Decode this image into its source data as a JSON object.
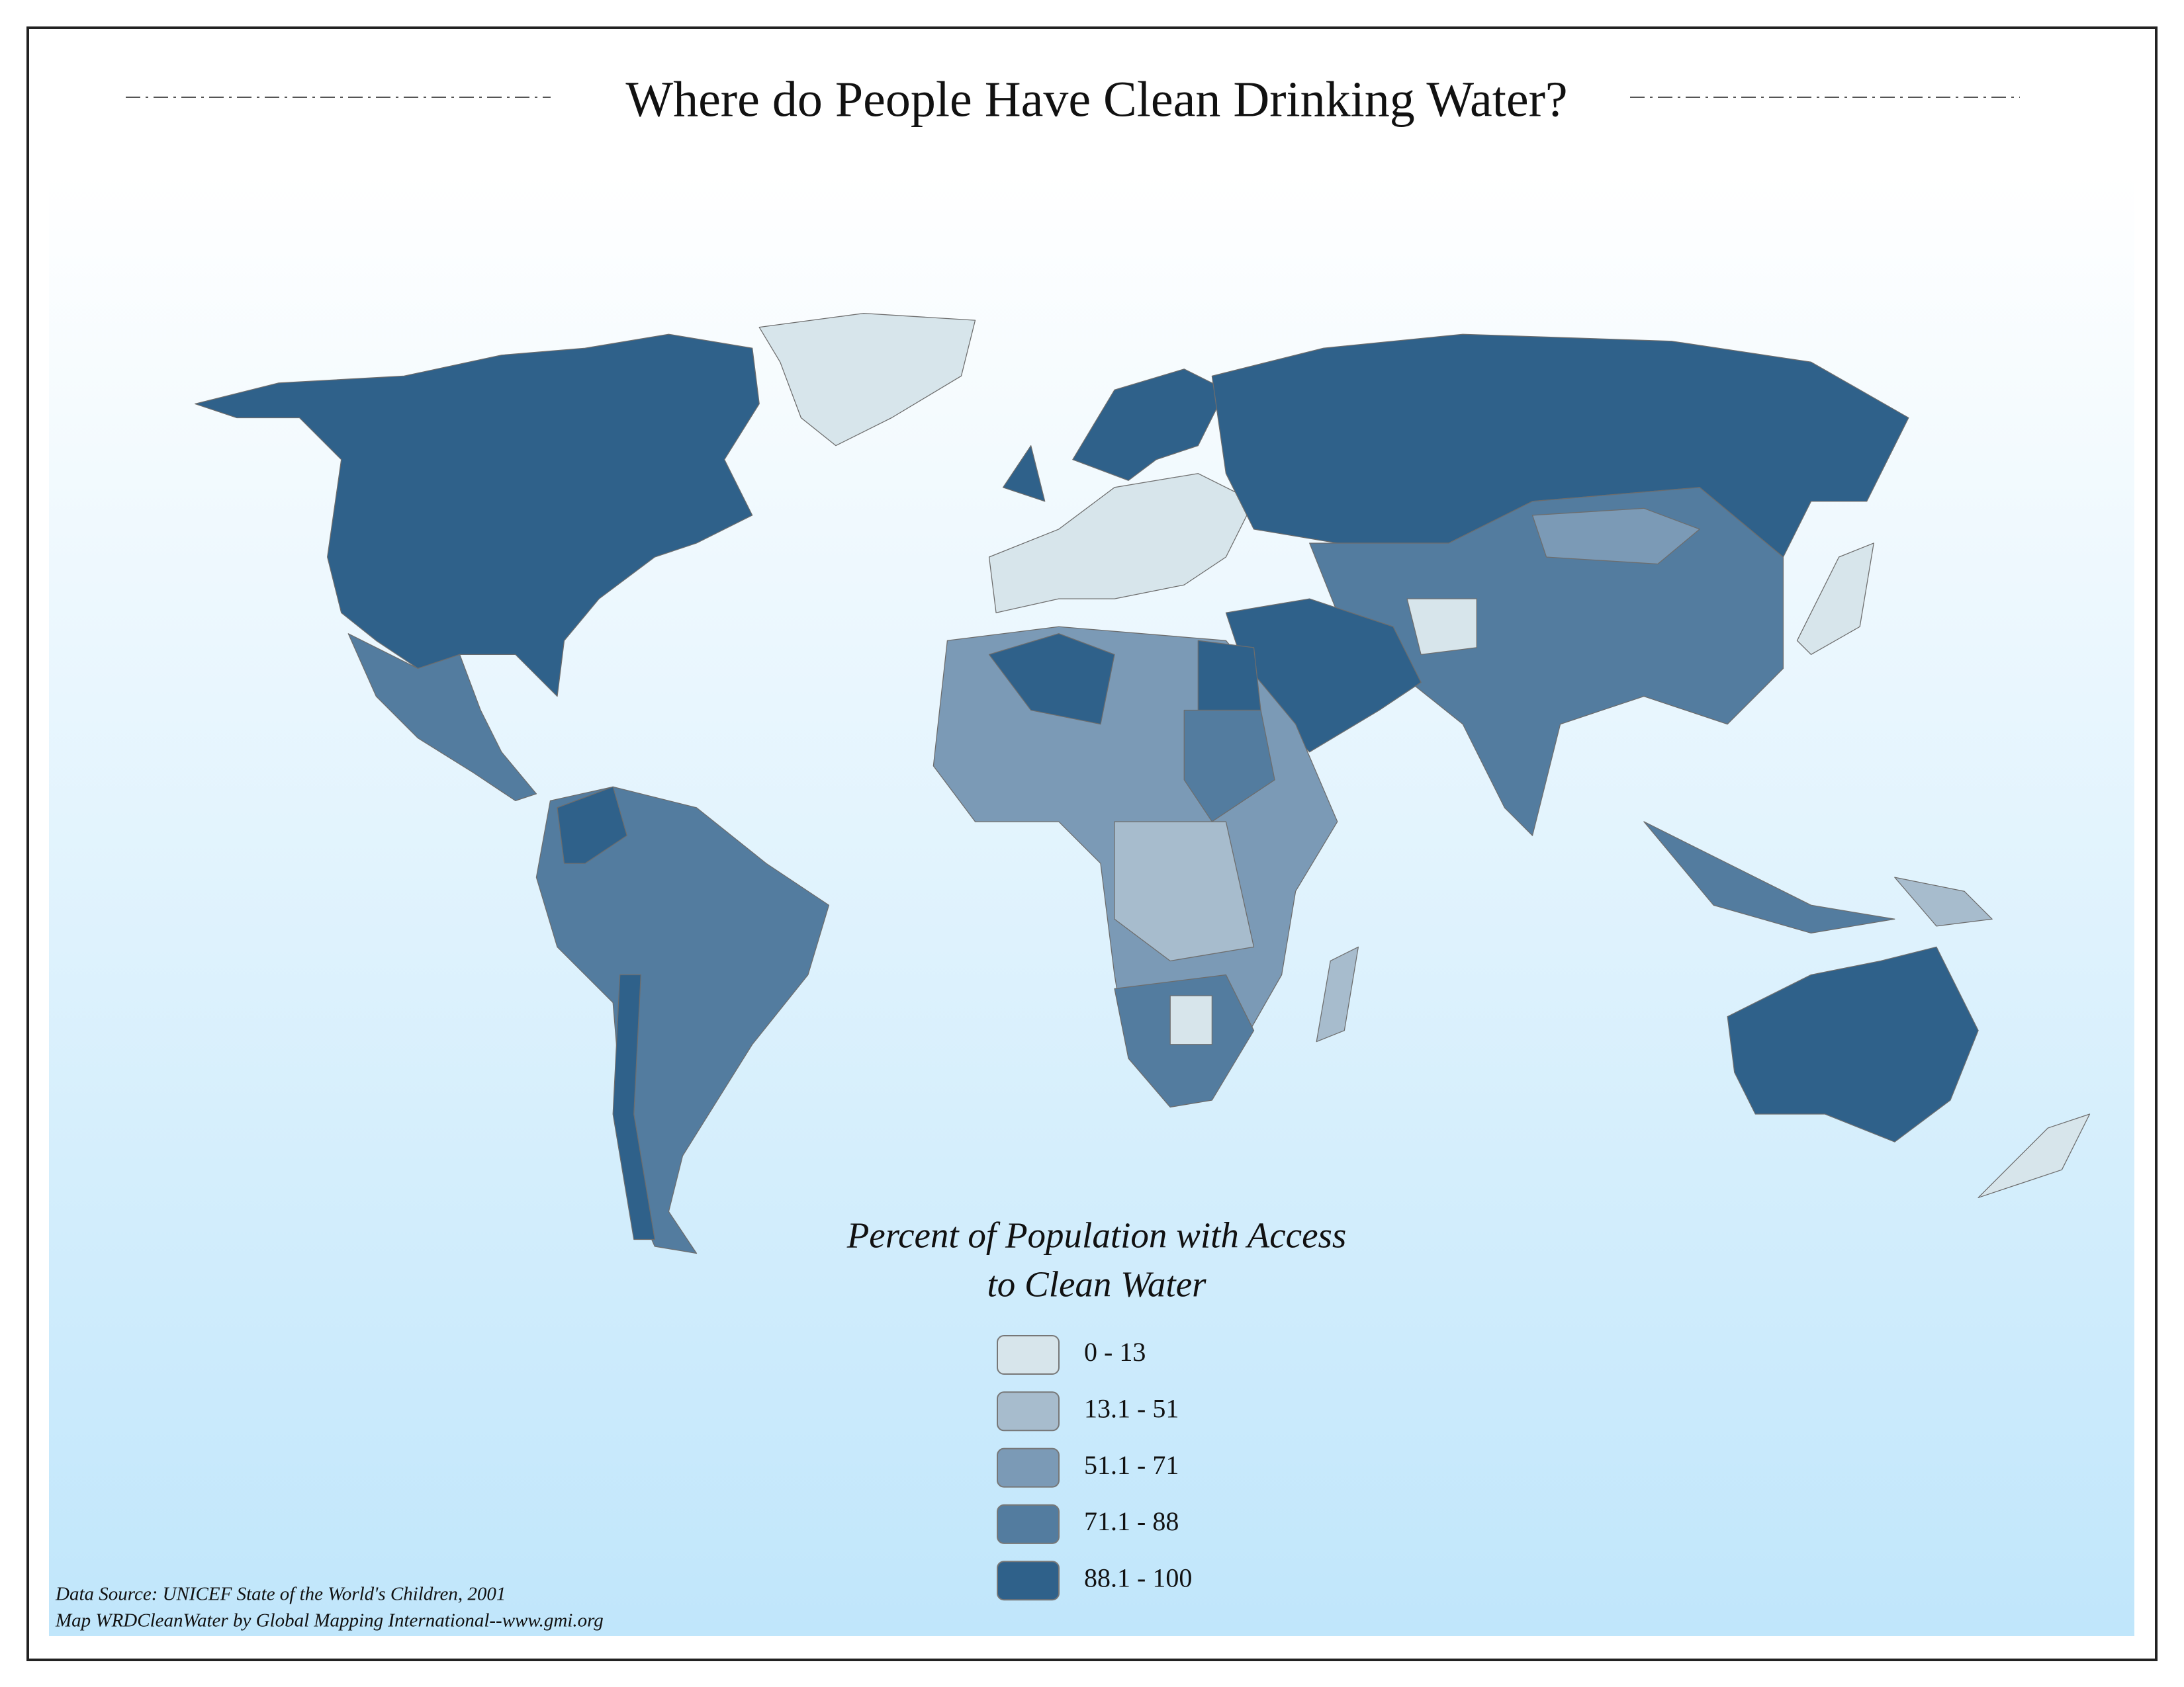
{
  "title": "Where do People Have Clean Drinking Water?",
  "legend": {
    "title": [
      "Percent of Population with Access",
      "to Clean Water"
    ],
    "classes": [
      {
        "label": "0 - 13",
        "color": "#d7e5eb"
      },
      {
        "label": "13.1 - 51",
        "color": "#a7bccd"
      },
      {
        "label": "51.1 - 71",
        "color": "#7b9ab6"
      },
      {
        "label": "71.1 - 88",
        "color": "#537c9f"
      },
      {
        "label": "88.1 - 100",
        "color": "#2f618a"
      }
    ]
  },
  "source": [
    "Data Source:  UNICEF State of the World's Children, 2001",
    "Map WRDCleanWater by Global Mapping International--www.gmi.org"
  ]
}
